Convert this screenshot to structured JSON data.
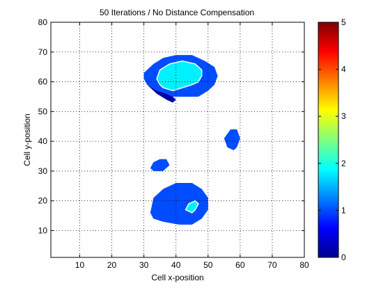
{
  "chart_data": {
    "type": "heatmap",
    "title": "50 Iterations / No Distance Compensation",
    "xlabel": "Cell x-position",
    "ylabel": "Cell y-position",
    "xlim": [
      1,
      80
    ],
    "ylim": [
      1,
      80
    ],
    "x_ticks": [
      10,
      20,
      30,
      40,
      50,
      60,
      70,
      80
    ],
    "y_ticks": [
      10,
      20,
      30,
      40,
      50,
      60,
      70,
      80
    ],
    "grid": true,
    "colormap": "jet",
    "colorbar": {
      "range": [
        0,
        5
      ],
      "ticks": [
        0,
        1,
        2,
        3,
        4,
        5
      ]
    },
    "regions": [
      {
        "name": "upper-blob",
        "level": 1,
        "outline": [
          [
            30,
            63
          ],
          [
            33,
            66
          ],
          [
            36,
            68
          ],
          [
            40,
            69
          ],
          [
            45,
            69
          ],
          [
            49,
            67
          ],
          [
            52,
            65
          ],
          [
            53,
            62
          ],
          [
            52,
            59
          ],
          [
            50,
            57
          ],
          [
            47,
            55
          ],
          [
            42,
            55
          ],
          [
            39,
            55
          ],
          [
            37,
            56
          ],
          [
            34,
            57
          ],
          [
            31,
            59
          ],
          [
            30,
            61
          ]
        ]
      },
      {
        "name": "upper-notch",
        "level": 0.2,
        "outline": [
          [
            31,
            59
          ],
          [
            34,
            57
          ],
          [
            37,
            56
          ],
          [
            39,
            55
          ],
          [
            40,
            54
          ],
          [
            39,
            53
          ],
          [
            37,
            54
          ],
          [
            34,
            56
          ],
          [
            32,
            58
          ]
        ]
      },
      {
        "name": "upper-core",
        "level": 1.8,
        "outline": [
          [
            34,
            61
          ],
          [
            35,
            64
          ],
          [
            38,
            66
          ],
          [
            42,
            67
          ],
          [
            46,
            66
          ],
          [
            48,
            64
          ],
          [
            48,
            62
          ],
          [
            47,
            60
          ],
          [
            45,
            59
          ],
          [
            42,
            58
          ],
          [
            39,
            57
          ],
          [
            36,
            58
          ],
          [
            35,
            59
          ]
        ]
      },
      {
        "name": "middle-right-blob",
        "level": 1,
        "outline": [
          [
            56,
            38
          ],
          [
            55,
            41
          ],
          [
            57,
            44
          ],
          [
            59,
            44
          ],
          [
            60,
            41
          ],
          [
            59,
            38
          ],
          [
            58,
            37
          ]
        ]
      },
      {
        "name": "small-left-blob",
        "level": 1,
        "outline": [
          [
            32,
            31
          ],
          [
            33,
            33
          ],
          [
            35,
            34
          ],
          [
            37,
            34
          ],
          [
            38,
            32
          ],
          [
            36,
            30
          ],
          [
            33,
            30
          ]
        ]
      },
      {
        "name": "lower-blob",
        "level": 1,
        "outline": [
          [
            32,
            16
          ],
          [
            33,
            21
          ],
          [
            36,
            24
          ],
          [
            40,
            26
          ],
          [
            45,
            26
          ],
          [
            48,
            24
          ],
          [
            50,
            21
          ],
          [
            50,
            17
          ],
          [
            48,
            14
          ],
          [
            45,
            12
          ],
          [
            41,
            12
          ],
          [
            36,
            13
          ],
          [
            33,
            14
          ]
        ]
      },
      {
        "name": "lower-core",
        "level": 1.8,
        "outline": [
          [
            43,
            17
          ],
          [
            44,
            19
          ],
          [
            46,
            20
          ],
          [
            47,
            19
          ],
          [
            46,
            17
          ],
          [
            45,
            16
          ]
        ]
      }
    ]
  }
}
